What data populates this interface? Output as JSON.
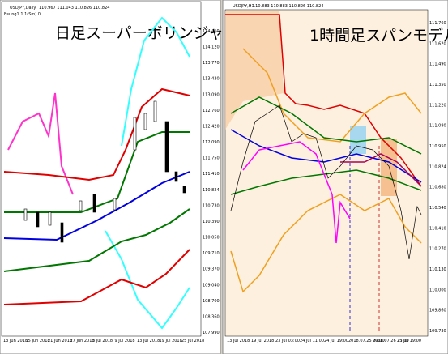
{
  "left": {
    "symbol": "USDJPY,Daily",
    "ohlc": "110.967 111.043 110.826 110.824",
    "indicator": "Bsung1 1 1(Sm) 0",
    "title": "日足スーパーボリンジャー",
    "prices": [
      "114.410",
      "114.120",
      "113.770",
      "113.430",
      "113.090",
      "112.760",
      "112.420",
      "112.090",
      "111.750",
      "111.410",
      "110.824",
      "110.730",
      "110.390",
      "110.050",
      "109.710",
      "109.370",
      "109.040",
      "108.700",
      "108.360",
      "107.990"
    ],
    "dates": [
      "13 Jun 2018",
      "15 Jun 2018",
      "21 Jun 2018",
      "27 Jun 2018",
      "3 Jul 2018",
      "9 Jul 2018",
      "13 Jul 2018",
      "19 Jul 2018",
      "25 Jul 2018"
    ]
  },
  "right": {
    "symbol": "USDJPY,H1",
    "ohlc": "110.883 110.883 110.826 110.824",
    "title": "1時間足スパンモデル",
    "prices": [
      "111.760",
      "111.620",
      "111.490",
      "111.350",
      "111.220",
      "111.080",
      "110.950",
      "110.824",
      "110.680",
      "110.540",
      "110.410",
      "110.270",
      "110.130",
      "110.000",
      "109.860",
      "109.730"
    ],
    "dates": [
      "13 Jul 2018",
      "19 Jul 2018",
      "23 Jul 03:00",
      "24 Jul 11:00",
      "24 Jul 19:00",
      "2018.07.25 09:00",
      "2018.07.26 13:00",
      "25 Jul 19:00"
    ]
  }
}
